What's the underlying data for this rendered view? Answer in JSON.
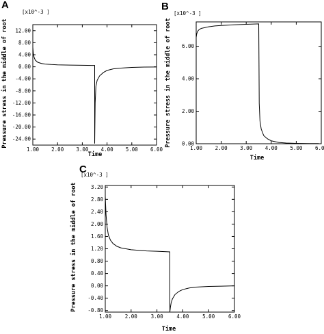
{
  "chart_data": [
    {
      "panel": "A",
      "type": "line",
      "multiplier": "[x10^-3 ]",
      "ylabel": "Pressure stress in the middle of root",
      "xlabel": "Time",
      "xlim": [
        1.0,
        6.0
      ],
      "ylim": [
        -26.0,
        14.0
      ],
      "xticks": [
        "1.00",
        "2.00",
        "3.00",
        "4.00",
        "5.00",
        "6.00"
      ],
      "yticks": [
        "12.00",
        "8.00",
        "4.00",
        "0.00",
        "-4.00",
        "-8.00",
        "-12.00",
        "-16.00",
        "-20.00",
        "-24.00"
      ],
      "ytick_values": [
        12,
        8,
        4,
        0,
        -4,
        -8,
        -12,
        -16,
        -20,
        -24
      ],
      "grid": false,
      "series": [
        {
          "x": [
            1.0,
            1.02,
            1.05,
            1.1,
            1.2,
            1.35,
            1.5,
            1.75,
            2.0,
            2.5,
            3.0,
            3.4,
            3.5,
            3.5,
            3.52,
            3.55,
            3.6,
            3.7,
            3.85,
            4.0,
            4.25,
            4.5,
            5.0,
            5.5,
            6.0
          ],
          "y": [
            6.5,
            4.5,
            3.2,
            2.2,
            1.5,
            1.1,
            0.9,
            0.75,
            0.65,
            0.55,
            0.5,
            0.45,
            0.45,
            -25.5,
            -12.0,
            -6.5,
            -4.5,
            -3.0,
            -1.9,
            -1.2,
            -0.7,
            -0.45,
            -0.2,
            -0.1,
            -0.05
          ]
        }
      ]
    },
    {
      "panel": "B",
      "type": "line",
      "multiplier": "[x10^-3 ]",
      "ylabel": "Pressure stress in the middle of root",
      "xlabel": "Time",
      "xlim": [
        1.0,
        6.0
      ],
      "ylim": [
        0.0,
        7.5
      ],
      "xticks": [
        "1.00",
        "2.00",
        "3.00",
        "4.00",
        "5.00",
        "6.00"
      ],
      "yticks": [
        "0.00",
        "2.00",
        "4.00",
        "6.00"
      ],
      "ytick_values": [
        0,
        2,
        4,
        6
      ],
      "grid": false,
      "series": [
        {
          "x": [
            1.0,
            1.02,
            1.05,
            1.1,
            1.2,
            1.35,
            1.5,
            1.75,
            2.0,
            2.5,
            3.0,
            3.5,
            3.51,
            3.52,
            3.55,
            3.6,
            3.7,
            3.85,
            4.0,
            4.3,
            4.6,
            5.0,
            5.5,
            5.9
          ],
          "y": [
            6.55,
            6.75,
            6.9,
            7.0,
            7.1,
            7.15,
            7.2,
            7.25,
            7.28,
            7.32,
            7.35,
            7.38,
            5.0,
            2.5,
            1.4,
            0.9,
            0.5,
            0.3,
            0.18,
            0.08,
            0.04,
            0.02,
            0.01,
            0.01
          ]
        }
      ]
    },
    {
      "panel": "C",
      "type": "line",
      "multiplier": "[x10^-3 ]",
      "ylabel": "Pressure stress in the middle of root",
      "xlabel": "Time",
      "xlim": [
        1.0,
        6.0
      ],
      "ylim": [
        -0.85,
        3.25
      ],
      "xticks": [
        "1.00",
        "2.00",
        "3.00",
        "4.00",
        "5.00",
        "6.00"
      ],
      "yticks": [
        "3.20",
        "2.80",
        "2.40",
        "2.00",
        "1.60",
        "1.20",
        "0.80",
        "0.40",
        "0.00",
        "-0.40",
        "-0.80"
      ],
      "ytick_values": [
        3.2,
        2.8,
        2.4,
        2.0,
        1.6,
        1.2,
        0.8,
        0.4,
        0.0,
        -0.4,
        -0.8
      ],
      "grid": false,
      "series": [
        {
          "x": [
            1.0,
            1.03,
            1.07,
            1.12,
            1.2,
            1.3,
            1.45,
            1.6,
            1.8,
            2.0,
            2.3,
            2.6,
            3.0,
            3.5,
            3.5,
            3.52,
            3.55,
            3.6,
            3.7,
            3.85,
            4.0,
            4.25,
            4.5,
            5.0,
            5.5,
            6.0
          ],
          "y": [
            2.9,
            2.3,
            1.9,
            1.65,
            1.48,
            1.37,
            1.28,
            1.23,
            1.2,
            1.17,
            1.15,
            1.13,
            1.12,
            1.1,
            -0.85,
            -0.7,
            -0.55,
            -0.42,
            -0.28,
            -0.18,
            -0.12,
            -0.07,
            -0.04,
            -0.02,
            -0.01,
            0.0
          ]
        }
      ]
    }
  ]
}
